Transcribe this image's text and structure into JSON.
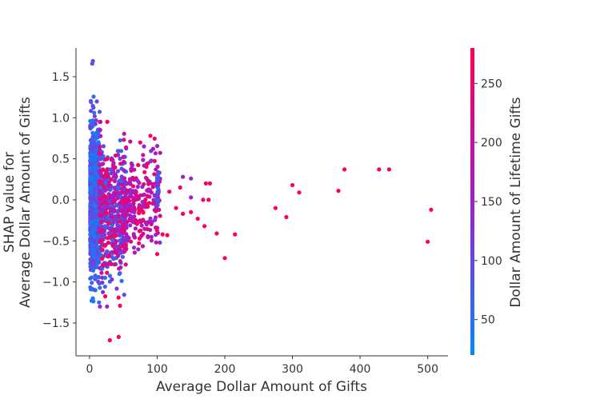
{
  "chart_data": {
    "type": "scatter",
    "title": "",
    "xlabel": "Average Dollar Amount of Gifts",
    "ylabel_lines": [
      "SHAP value for",
      "Average Dollar Amount of Gifts"
    ],
    "xlim": [
      -20,
      530
    ],
    "ylim": [
      -1.9,
      1.85
    ],
    "xticks": [
      0,
      100,
      200,
      300,
      400,
      500
    ],
    "yticks": [
      -1.5,
      -1.0,
      -0.5,
      0.0,
      0.5,
      1.0,
      1.5
    ],
    "xtick_labels": [
      "0",
      "100",
      "200",
      "300",
      "400",
      "500"
    ],
    "ytick_labels": [
      "−1.5",
      "−1.0",
      "−0.5",
      "0.0",
      "0.5",
      "1.0",
      "1.5"
    ],
    "grid": false,
    "colorbar": {
      "label": "Dollar Amount of Lifetime Gifts",
      "range": [
        20,
        280
      ],
      "ticks": [
        50,
        100,
        150,
        200,
        250
      ],
      "tick_labels": [
        "50",
        "100",
        "150",
        "200",
        "250"
      ],
      "colors": [
        "#008bfb",
        "#5353e8",
        "#a020c8",
        "#d00a98",
        "#ff0052"
      ]
    },
    "outliers": [
      {
        "x": 505,
        "y": -0.12,
        "c": 270
      },
      {
        "x": 500,
        "y": -0.51,
        "c": 270
      },
      {
        "x": 443,
        "y": 0.37,
        "c": 270
      },
      {
        "x": 428,
        "y": 0.37,
        "c": 270
      },
      {
        "x": 377,
        "y": 0.37,
        "c": 270
      },
      {
        "x": 368,
        "y": 0.11,
        "c": 270
      },
      {
        "x": 310,
        "y": 0.09,
        "c": 270
      },
      {
        "x": 300,
        "y": 0.18,
        "c": 270
      },
      {
        "x": 291,
        "y": -0.21,
        "c": 270
      },
      {
        "x": 275,
        "y": -0.1,
        "c": 270
      },
      {
        "x": 215,
        "y": -0.42,
        "c": 270
      },
      {
        "x": 200,
        "y": -0.71,
        "c": 270
      },
      {
        "x": 188,
        "y": -0.41,
        "c": 270
      },
      {
        "x": 178,
        "y": 0.2,
        "c": 270
      },
      {
        "x": 172,
        "y": 0.2,
        "c": 270
      },
      {
        "x": 176,
        "y": 0.0,
        "c": 270
      },
      {
        "x": 168,
        "y": 0.0,
        "c": 260
      },
      {
        "x": 170,
        "y": -0.32,
        "c": 270
      },
      {
        "x": 160,
        "y": -0.23,
        "c": 270
      },
      {
        "x": 150,
        "y": 0.26,
        "c": 140
      },
      {
        "x": 150,
        "y": 0.03,
        "c": 150
      },
      {
        "x": 150,
        "y": -0.15,
        "c": 270
      },
      {
        "x": 138,
        "y": 0.28,
        "c": 150
      },
      {
        "x": 138,
        "y": -0.17,
        "c": 270
      },
      {
        "x": 134,
        "y": 0.15,
        "c": 260
      },
      {
        "x": 128,
        "y": -0.1,
        "c": 270
      },
      {
        "x": 118,
        "y": 0.1,
        "c": 270
      },
      {
        "x": 115,
        "y": -0.43,
        "c": 270
      },
      {
        "x": 108,
        "y": -0.42,
        "c": 270
      },
      {
        "x": 100,
        "y": -0.66,
        "c": 270
      },
      {
        "x": 90,
        "y": 0.78,
        "c": 270
      },
      {
        "x": 75,
        "y": 0.7,
        "c": 270
      },
      {
        "x": 45,
        "y": -1.29,
        "c": 270
      },
      {
        "x": 43,
        "y": -1.67,
        "c": 270
      },
      {
        "x": 30,
        "y": -1.71,
        "c": 270
      },
      {
        "x": 5,
        "y": 1.69,
        "c": 100
      },
      {
        "x": 4,
        "y": 1.66,
        "c": 90
      },
      {
        "x": 3,
        "y": -1.23,
        "c": 30
      },
      {
        "x": 5,
        "y": -1.2,
        "c": 40
      }
    ]
  }
}
